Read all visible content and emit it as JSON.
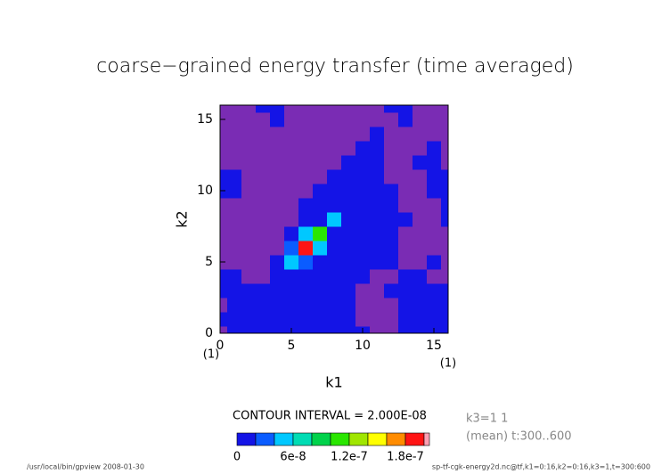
{
  "chart_data": {
    "type": "contour",
    "title": "coarse−grained energy transfer (time averaged)",
    "x_label": "k1",
    "y_label": "k2",
    "xlim": [
      0,
      16
    ],
    "ylim": [
      0,
      16
    ],
    "xticks": [
      0,
      5,
      10,
      15
    ],
    "yticks": [
      0,
      5,
      10,
      15
    ],
    "x_index_labels": [
      {
        "value": 0,
        "label": "(1)"
      },
      {
        "value": 16,
        "label": "(1)"
      }
    ],
    "x": [
      0,
      1,
      2,
      3,
      4,
      5,
      6,
      7,
      8,
      9,
      10,
      11,
      12,
      13,
      14,
      15,
      16
    ],
    "y": [
      0,
      1,
      2,
      3,
      4,
      5,
      6,
      7,
      8,
      9,
      10,
      11,
      12,
      13,
      14,
      15,
      16
    ],
    "z": [
      [
        -1e-08,
        1e-08,
        1e-08,
        1e-08,
        1e-08,
        1e-08,
        1e-08,
        1e-08,
        1e-08,
        1e-08,
        1e-08,
        -1e-08,
        -1e-08,
        1e-08,
        1e-08,
        1e-08,
        1e-08
      ],
      [
        1e-08,
        1e-08,
        1e-08,
        1e-08,
        1e-08,
        1e-08,
        1e-08,
        1e-08,
        1e-08,
        1e-08,
        -1e-08,
        -1e-08,
        -1e-08,
        1e-08,
        1e-08,
        1e-08,
        1e-08
      ],
      [
        -1e-08,
        1e-08,
        1e-08,
        1e-08,
        1e-08,
        1e-08,
        1e-08,
        1e-08,
        1e-08,
        1e-08,
        -1e-08,
        -1e-08,
        -1e-08,
        1e-08,
        1e-08,
        1e-08,
        1e-08
      ],
      [
        1e-08,
        1e-08,
        1e-08,
        1e-08,
        1e-08,
        1e-08,
        1e-08,
        1e-08,
        1e-08,
        1e-08,
        -1e-08,
        -1e-08,
        1e-08,
        1e-08,
        1e-08,
        1e-08,
        1e-08
      ],
      [
        1e-08,
        1e-08,
        -1e-08,
        -1e-08,
        1e-08,
        1e-08,
        1e-08,
        1e-08,
        1e-08,
        1e-08,
        1e-08,
        -1e-08,
        -1e-08,
        1e-08,
        1e-08,
        -1e-08,
        -1e-08
      ],
      [
        -1e-08,
        -1e-08,
        -1e-08,
        -1e-08,
        1e-08,
        5e-08,
        3e-08,
        1e-08,
        1e-08,
        1e-08,
        1e-08,
        1e-08,
        1e-08,
        -1e-08,
        -1e-08,
        1e-08,
        -1e-08
      ],
      [
        -1e-08,
        -1e-08,
        -1e-08,
        -1e-08,
        -1e-08,
        3e-08,
        1.9e-07,
        4e-08,
        1e-08,
        1e-08,
        1e-08,
        1e-08,
        1e-08,
        -1e-08,
        -1e-08,
        -1e-08,
        -1e-08
      ],
      [
        -1e-08,
        -1e-08,
        -1e-08,
        -1e-08,
        -1e-08,
        1e-08,
        4e-08,
        1.1e-07,
        1e-08,
        1e-08,
        1e-08,
        1e-08,
        1e-08,
        -1e-08,
        -1e-08,
        -1e-08,
        -1e-08
      ],
      [
        -1e-08,
        -1e-08,
        -1e-08,
        -1e-08,
        -1e-08,
        -1e-08,
        1e-08,
        1e-08,
        5e-08,
        1e-08,
        1e-08,
        1e-08,
        1e-08,
        1e-08,
        -1e-08,
        -1e-08,
        1e-08
      ],
      [
        -1e-08,
        -1e-08,
        -1e-08,
        -1e-08,
        -1e-08,
        -1e-08,
        1e-08,
        1e-08,
        1e-08,
        1e-08,
        1e-08,
        1e-08,
        1e-08,
        -1e-08,
        -1e-08,
        -1e-08,
        1e-08
      ],
      [
        1e-08,
        1e-08,
        -1e-08,
        -1e-08,
        -1e-08,
        -1e-08,
        -1e-08,
        1e-08,
        1e-08,
        1e-08,
        1e-08,
        1e-08,
        1e-08,
        -1e-08,
        -1e-08,
        1e-08,
        1e-08
      ],
      [
        1e-08,
        1e-08,
        -1e-08,
        -1e-08,
        -1e-08,
        -1e-08,
        -1e-08,
        -1e-08,
        1e-08,
        1e-08,
        1e-08,
        1e-08,
        -1e-08,
        -1e-08,
        -1e-08,
        1e-08,
        1e-08
      ],
      [
        -1e-08,
        -1e-08,
        -1e-08,
        -1e-08,
        -1e-08,
        -1e-08,
        -1e-08,
        -1e-08,
        -1e-08,
        1e-08,
        1e-08,
        1e-08,
        -1e-08,
        -1e-08,
        1e-08,
        1e-08,
        -1e-08
      ],
      [
        -1e-08,
        -1e-08,
        -1e-08,
        -1e-08,
        -1e-08,
        -1e-08,
        -1e-08,
        -1e-08,
        -1e-08,
        -1e-08,
        1e-08,
        1e-08,
        -1e-08,
        -1e-08,
        -1e-08,
        1e-08,
        -1e-08
      ],
      [
        -1e-08,
        -1e-08,
        -1e-08,
        -1e-08,
        -1e-08,
        -1e-08,
        -1e-08,
        -1e-08,
        -1e-08,
        -1e-08,
        -1e-08,
        1e-08,
        -1e-08,
        -1e-08,
        -1e-08,
        -1e-08,
        -1e-08
      ],
      [
        -1e-08,
        -1e-08,
        -1e-08,
        -1e-08,
        1e-08,
        -1e-08,
        -1e-08,
        -1e-08,
        -1e-08,
        -1e-08,
        -1e-08,
        -1e-08,
        -1e-08,
        1e-08,
        -1e-08,
        -1e-08,
        -1e-08
      ],
      [
        -1e-08,
        -1e-08,
        -1e-08,
        1e-08,
        1e-08,
        -1e-08,
        -1e-08,
        -1e-08,
        -1e-08,
        -1e-08,
        -1e-08,
        -1e-08,
        1e-08,
        1e-08,
        -1e-08,
        -1e-08,
        -1e-08
      ]
    ],
    "colorbar": {
      "levels": [
        0,
        2e-08,
        4e-08,
        6e-08,
        8e-08,
        1e-07,
        1.2e-07,
        1.4e-07,
        1.6e-07,
        1.8e-07,
        2e-07
      ],
      "colors": [
        "#1414e6",
        "#0a5cff",
        "#00c8ff",
        "#00dcb4",
        "#00d24b",
        "#2ae600",
        "#a0e600",
        "#ffff00",
        "#ff8c00",
        "#ff1414"
      ],
      "under_color": "#7a2cb4",
      "over_color": "#ffa0b4",
      "ticks": [
        0,
        6e-08,
        1.2e-07,
        1.8e-07
      ]
    },
    "contour_interval": "CONTOUR INTERVAL = 2.000E-08",
    "notes": [
      "k3=1 1",
      "(mean) t:300..600"
    ],
    "footer_left": "/usr/local/bin/gpview  2008-01-30",
    "footer_right": "sp-tf-cgk-energy2d.nc@tf,k1=0:16,k2=0:16,k3=1,t=300:600"
  }
}
